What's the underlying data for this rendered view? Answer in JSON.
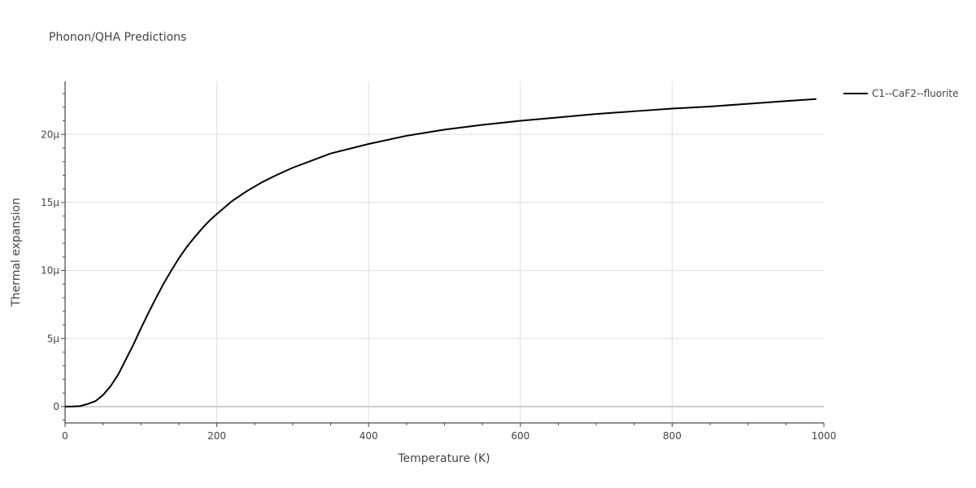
{
  "chart_data": {
    "type": "line",
    "title": "Phonon/QHA Predictions",
    "xlabel": "Temperature (K)",
    "ylabel": "Thermal expansion",
    "xlim": [
      0,
      1000
    ],
    "ylim": [
      -1.2e-06,
      2.39e-05
    ],
    "x_ticks": [
      0,
      200,
      400,
      600,
      800,
      1000
    ],
    "x_tick_labels": [
      "0",
      "200",
      "400",
      "600",
      "800",
      "1000"
    ],
    "y_ticks": [
      0,
      5e-06,
      1e-05,
      1.5e-05,
      2e-05
    ],
    "y_tick_labels": [
      "0",
      "5μ",
      "10μ",
      "15μ",
      "20μ"
    ],
    "grid": true,
    "legend_position": "top-right",
    "series": [
      {
        "name": "C1--CaF2--fluorite",
        "color": "#000000",
        "x": [
          0,
          10,
          20,
          30,
          40,
          50,
          60,
          70,
          80,
          90,
          100,
          110,
          120,
          130,
          140,
          150,
          160,
          170,
          180,
          190,
          200,
          220,
          240,
          260,
          280,
          300,
          350,
          400,
          450,
          500,
          550,
          600,
          650,
          700,
          750,
          800,
          850,
          900,
          950,
          990
        ],
        "y": [
          0,
          1e-08,
          4e-08,
          2e-07,
          4e-07,
          8.5e-07,
          1.5e-06,
          2.35e-06,
          3.45e-06,
          4.55e-06,
          5.75e-06,
          6.9e-06,
          8e-06,
          9.05e-06,
          1e-05,
          1.09e-05,
          1.17e-05,
          1.24e-05,
          1.305e-05,
          1.365e-05,
          1.415e-05,
          1.51e-05,
          1.585e-05,
          1.65e-05,
          1.705e-05,
          1.755e-05,
          1.86e-05,
          1.93e-05,
          1.99e-05,
          2.035e-05,
          2.07e-05,
          2.1e-05,
          2.125e-05,
          2.15e-05,
          2.17e-05,
          2.19e-05,
          2.205e-05,
          2.225e-05,
          2.245e-05,
          2.26e-05
        ]
      }
    ]
  }
}
